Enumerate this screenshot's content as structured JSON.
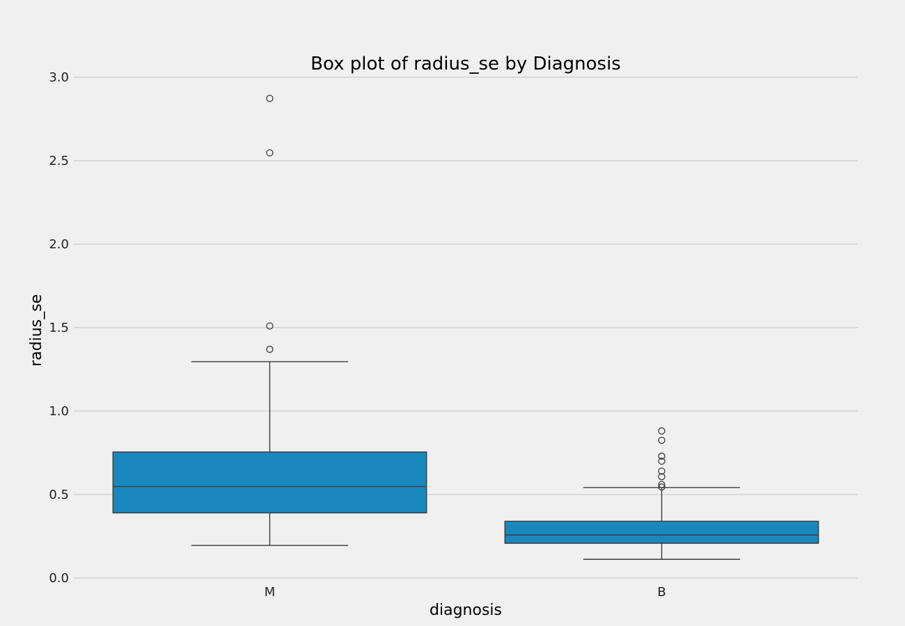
{
  "chart_data": {
    "type": "box",
    "title": "Box plot of radius_se by Diagnosis",
    "xlabel": "diagnosis",
    "ylabel": "radius_se",
    "ylim": [
      0.0,
      3.0
    ],
    "yticks": [
      "0.0",
      "0.5",
      "1.0",
      "1.5",
      "2.0",
      "2.5",
      "3.0"
    ],
    "grid": "horizontal",
    "categories": [
      "M",
      "B"
    ],
    "boxes": [
      {
        "category": "M",
        "whisker_low": 0.195,
        "q1": 0.39,
        "median": 0.548,
        "q3": 0.755,
        "whisker_high": 1.296,
        "outliers": [
          1.37,
          1.51,
          2.547,
          2.873
        ]
      },
      {
        "category": "B",
        "whisker_low": 0.112,
        "q1": 0.208,
        "median": 0.258,
        "q3": 0.34,
        "whisker_high": 0.542,
        "outliers": [
          0.545,
          0.56,
          0.607,
          0.64,
          0.7,
          0.73,
          0.825,
          0.881
        ]
      }
    ],
    "colors": {
      "box_fill": "#1a87bd",
      "line": "#3a3a3a",
      "grid": "#cbcbcb",
      "background": "#f0f0f0"
    }
  }
}
